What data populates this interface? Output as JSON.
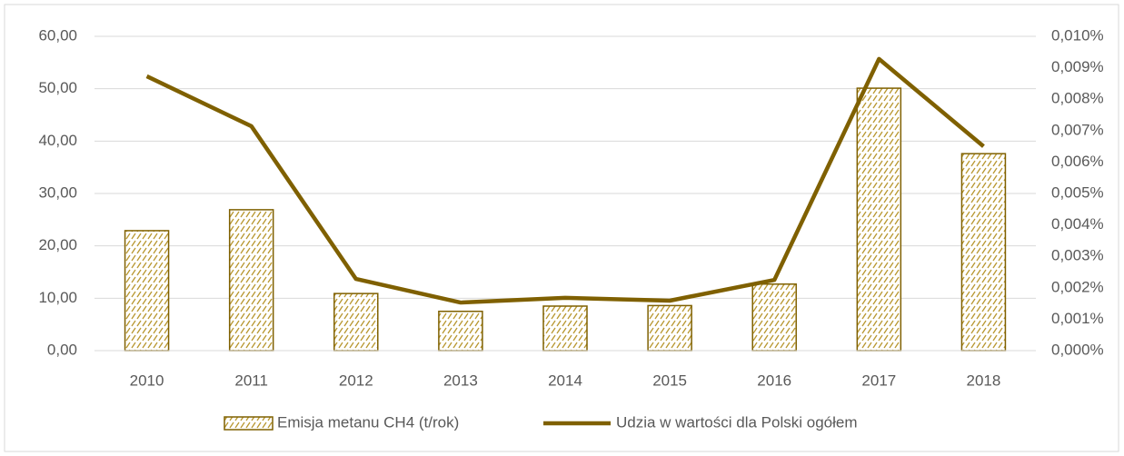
{
  "chart_data": {
    "type": "bar",
    "categories": [
      "2010",
      "2011",
      "2012",
      "2013",
      "2014",
      "2015",
      "2016",
      "2017",
      "2018"
    ],
    "series": [
      {
        "name": "Emisja metanu CH4 (t/rok)",
        "type": "bar",
        "color": "#7f6000",
        "values": [
          22.9,
          26.9,
          10.9,
          7.5,
          8.5,
          8.6,
          12.7,
          50.1,
          37.6
        ]
      },
      {
        "name": "Udzia w wartości dla Polski ogółem",
        "type": "line",
        "axis": "y2",
        "color": "#7f6000",
        "values": [
          0.00873,
          0.00714,
          0.00228,
          0.00153,
          0.00168,
          0.00159,
          0.00225,
          0.00928,
          0.0065
        ]
      }
    ],
    "ylim": [
      0,
      60
    ],
    "yticks": [
      {
        "value": 0,
        "label": "0,00"
      },
      {
        "value": 10,
        "label": "10,00"
      },
      {
        "value": 20,
        "label": "20,00"
      },
      {
        "value": 30,
        "label": "30,00"
      },
      {
        "value": 40,
        "label": "40,00"
      },
      {
        "value": 50,
        "label": "50,00"
      },
      {
        "value": 60,
        "label": "60,00"
      }
    ],
    "y2lim": [
      0,
      0.01
    ],
    "y2ticks": [
      {
        "value": 0,
        "label": "0,000%"
      },
      {
        "value": 0.001,
        "label": "0,001%"
      },
      {
        "value": 0.002,
        "label": "0,002%"
      },
      {
        "value": 0.003,
        "label": "0,003%"
      },
      {
        "value": 0.004,
        "label": "0,004%"
      },
      {
        "value": 0.005,
        "label": "0,005%"
      },
      {
        "value": 0.006,
        "label": "0,006%"
      },
      {
        "value": 0.007,
        "label": "0,007%"
      },
      {
        "value": 0.008,
        "label": "0,008%"
      },
      {
        "value": 0.009,
        "label": "0,009%"
      },
      {
        "value": 0.01,
        "label": "0,010%"
      }
    ],
    "grid": true,
    "legend": "bottom"
  }
}
